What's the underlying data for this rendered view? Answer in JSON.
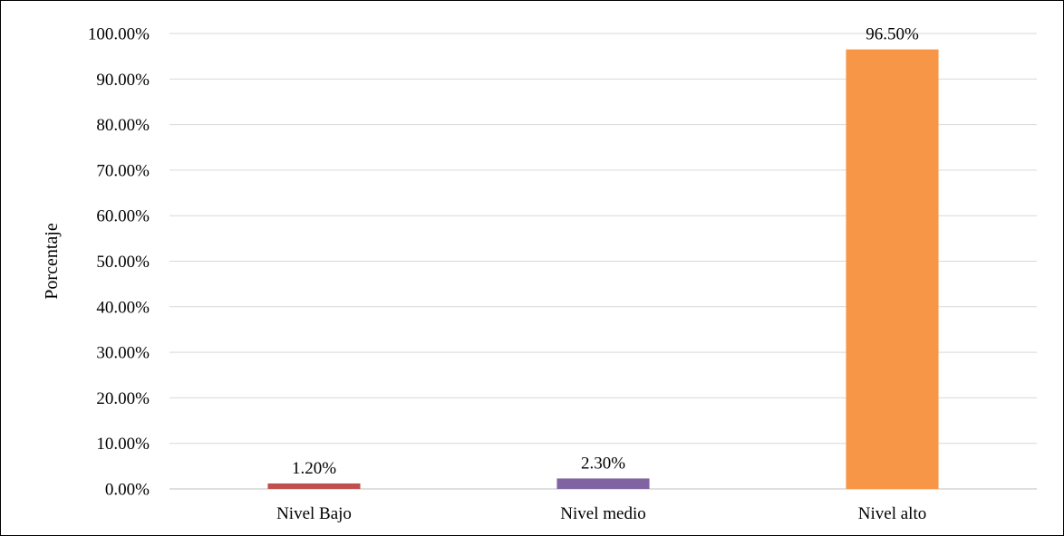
{
  "chart_data": {
    "type": "bar",
    "title": "",
    "xlabel": "",
    "ylabel": "Porcentaje",
    "categories": [
      "Nivel Bajo",
      "Nivel medio",
      "Nivel alto"
    ],
    "values": [
      1.2,
      2.3,
      96.5
    ],
    "data_labels": [
      "1.20%",
      "2.30%",
      "96.50%"
    ],
    "bar_colors": [
      "#c0504d",
      "#8064a2",
      "#f79646"
    ],
    "ylim": [
      0,
      100
    ],
    "y_ticks": [
      0,
      10,
      20,
      30,
      40,
      50,
      60,
      70,
      80,
      90,
      100
    ],
    "y_tick_labels": [
      "0.00%",
      "10.00%",
      "20.00%",
      "30.00%",
      "40.00%",
      "50.00%",
      "60.00%",
      "70.00%",
      "80.00%",
      "90.00%",
      "100.00%"
    ],
    "grid": true,
    "legend": "none"
  }
}
